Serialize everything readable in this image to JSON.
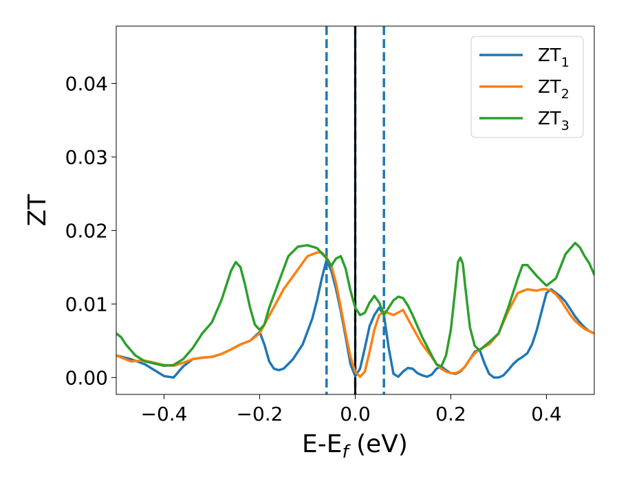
{
  "chart_data": {
    "type": "line",
    "title": "",
    "xlabel": "E-E",
    "xlabel_sub": "f",
    "xlabel_unit": " (eV)",
    "ylabel": "ZT",
    "xlim": [
      -0.5,
      0.5
    ],
    "ylim": [
      -0.0023,
      0.0478
    ],
    "xticks": [
      -0.4,
      -0.2,
      0.0,
      0.2,
      0.4
    ],
    "xtick_labels": [
      "−0.4",
      "−0.2",
      "0.0",
      "0.2",
      "0.4"
    ],
    "yticks": [
      0.0,
      0.01,
      0.02,
      0.03,
      0.04
    ],
    "ytick_labels": [
      "0.00",
      "0.01",
      "0.02",
      "0.03",
      "0.04"
    ],
    "grid": false,
    "legend_position": "top-right",
    "vlines": [
      {
        "x": -0.06,
        "style": "dashed",
        "color": "#1f77b4"
      },
      {
        "x": 0.0,
        "style": "dashed",
        "color": "#1f77b4"
      },
      {
        "x": 0.06,
        "style": "dashed",
        "color": "#1f77b4"
      },
      {
        "x": 0.0,
        "style": "solid",
        "color": "#000000"
      }
    ],
    "series": [
      {
        "name": "ZT",
        "name_sub": "1",
        "color": "#1f77b4",
        "x": [
          -0.5,
          -0.47,
          -0.44,
          -0.42,
          -0.4,
          -0.38,
          -0.36,
          -0.34,
          -0.32,
          -0.3,
          -0.28,
          -0.26,
          -0.24,
          -0.22,
          -0.2,
          -0.19,
          -0.18,
          -0.17,
          -0.16,
          -0.15,
          -0.13,
          -0.11,
          -0.09,
          -0.08,
          -0.07,
          -0.06,
          -0.05,
          -0.04,
          -0.03,
          -0.02,
          -0.01,
          0.0,
          0.01,
          0.02,
          0.03,
          0.04,
          0.05,
          0.06,
          0.07,
          0.08,
          0.09,
          0.1,
          0.11,
          0.12,
          0.13,
          0.14,
          0.15,
          0.16,
          0.17,
          0.18,
          0.19,
          0.2,
          0.21,
          0.22,
          0.23,
          0.24,
          0.25,
          0.26,
          0.27,
          0.28,
          0.29,
          0.3,
          0.31,
          0.32,
          0.33,
          0.34,
          0.35,
          0.36,
          0.37,
          0.38,
          0.39,
          0.4,
          0.41,
          0.42,
          0.43,
          0.44,
          0.45,
          0.46,
          0.47,
          0.48,
          0.49,
          0.5
        ],
        "y": [
          0.003,
          0.0025,
          0.0018,
          0.001,
          0.0002,
          0.0,
          0.0015,
          0.0025,
          0.0027,
          0.0028,
          0.0032,
          0.0038,
          0.0045,
          0.005,
          0.0062,
          0.0045,
          0.0022,
          0.0012,
          0.001,
          0.0012,
          0.0025,
          0.0045,
          0.008,
          0.0105,
          0.0135,
          0.016,
          0.0145,
          0.012,
          0.009,
          0.0055,
          0.0018,
          0.0002,
          0.0012,
          0.004,
          0.007,
          0.0085,
          0.0095,
          0.0085,
          0.004,
          0.0005,
          0.0001,
          0.0008,
          0.0013,
          0.0012,
          0.0006,
          0.0003,
          0.0001,
          0.0004,
          0.0012,
          0.0015,
          0.001,
          0.0006,
          0.0005,
          0.0008,
          0.0015,
          0.0025,
          0.0035,
          0.0038,
          0.002,
          0.0005,
          0.0,
          0.0,
          0.0003,
          0.001,
          0.0018,
          0.0024,
          0.0028,
          0.0033,
          0.0045,
          0.0065,
          0.009,
          0.0115,
          0.012,
          0.0115,
          0.011,
          0.0103,
          0.0093,
          0.0083,
          0.0075,
          0.0068,
          0.0063,
          0.006
        ]
      },
      {
        "name": "ZT",
        "name_sub": "2",
        "color": "#ff7f0e",
        "x": [
          -0.5,
          -0.47,
          -0.44,
          -0.42,
          -0.4,
          -0.38,
          -0.36,
          -0.34,
          -0.32,
          -0.3,
          -0.28,
          -0.26,
          -0.24,
          -0.22,
          -0.2,
          -0.15,
          -0.1,
          -0.08,
          -0.07,
          -0.06,
          -0.05,
          -0.04,
          -0.03,
          -0.02,
          -0.01,
          0.0,
          0.01,
          0.02,
          0.03,
          0.04,
          0.05,
          0.06,
          0.08,
          0.1,
          0.12,
          0.14,
          0.16,
          0.17,
          0.18,
          0.19,
          0.2,
          0.21,
          0.22,
          0.23,
          0.24,
          0.25,
          0.26,
          0.28,
          0.3,
          0.32,
          0.34,
          0.36,
          0.38,
          0.39,
          0.4,
          0.41,
          0.42,
          0.43,
          0.44,
          0.45,
          0.46,
          0.47,
          0.48,
          0.49,
          0.5
        ],
        "y": [
          0.003,
          0.0022,
          0.0023,
          0.002,
          0.0017,
          0.0016,
          0.002,
          0.0025,
          0.0027,
          0.0028,
          0.0032,
          0.0038,
          0.0045,
          0.005,
          0.006,
          0.012,
          0.0165,
          0.017,
          0.017,
          0.0163,
          0.0152,
          0.0128,
          0.0095,
          0.006,
          0.0028,
          0.0008,
          0.0001,
          0.0008,
          0.0035,
          0.0065,
          0.0085,
          0.009,
          0.0085,
          0.0092,
          0.0068,
          0.0045,
          0.0028,
          0.0018,
          0.0012,
          0.0008,
          0.0006,
          0.0006,
          0.0009,
          0.0015,
          0.0025,
          0.0033,
          0.0038,
          0.0045,
          0.006,
          0.009,
          0.0115,
          0.012,
          0.0118,
          0.012,
          0.012,
          0.0118,
          0.0113,
          0.0105,
          0.0095,
          0.0085,
          0.0077,
          0.0071,
          0.0066,
          0.0063,
          0.006
        ]
      },
      {
        "name": "ZT",
        "name_sub": "3",
        "color": "#2ca02c",
        "x": [
          -0.5,
          -0.49,
          -0.48,
          -0.46,
          -0.44,
          -0.42,
          -0.4,
          -0.38,
          -0.36,
          -0.34,
          -0.32,
          -0.3,
          -0.28,
          -0.27,
          -0.26,
          -0.25,
          -0.24,
          -0.23,
          -0.22,
          -0.21,
          -0.2,
          -0.19,
          -0.18,
          -0.16,
          -0.14,
          -0.12,
          -0.1,
          -0.08,
          -0.06,
          -0.05,
          -0.04,
          -0.03,
          -0.02,
          -0.01,
          0.0,
          0.01,
          0.02,
          0.03,
          0.04,
          0.05,
          0.06,
          0.07,
          0.08,
          0.09,
          0.1,
          0.11,
          0.12,
          0.14,
          0.16,
          0.17,
          0.18,
          0.19,
          0.2,
          0.21,
          0.215,
          0.22,
          0.225,
          0.23,
          0.24,
          0.25,
          0.26,
          0.28,
          0.3,
          0.32,
          0.34,
          0.35,
          0.36,
          0.38,
          0.4,
          0.42,
          0.44,
          0.46,
          0.47,
          0.48,
          0.49,
          0.5
        ],
        "y": [
          0.006,
          0.0055,
          0.0045,
          0.003,
          0.0022,
          0.0019,
          0.0016,
          0.0017,
          0.0025,
          0.004,
          0.006,
          0.0075,
          0.0105,
          0.0125,
          0.0145,
          0.0157,
          0.015,
          0.0125,
          0.0095,
          0.0072,
          0.0065,
          0.0072,
          0.0095,
          0.013,
          0.0165,
          0.0178,
          0.018,
          0.0176,
          0.0162,
          0.0152,
          0.0162,
          0.0165,
          0.0148,
          0.0118,
          0.0095,
          0.0085,
          0.0088,
          0.0102,
          0.0111,
          0.0102,
          0.0085,
          0.0095,
          0.0105,
          0.011,
          0.0108,
          0.0098,
          0.0085,
          0.0055,
          0.003,
          0.0018,
          0.0015,
          0.003,
          0.0065,
          0.0125,
          0.0157,
          0.0163,
          0.0155,
          0.0125,
          0.0068,
          0.0043,
          0.0037,
          0.0048,
          0.006,
          0.0095,
          0.0135,
          0.0153,
          0.0153,
          0.0138,
          0.0125,
          0.0135,
          0.0168,
          0.0183,
          0.0177,
          0.0165,
          0.0155,
          0.014
        ]
      }
    ]
  }
}
